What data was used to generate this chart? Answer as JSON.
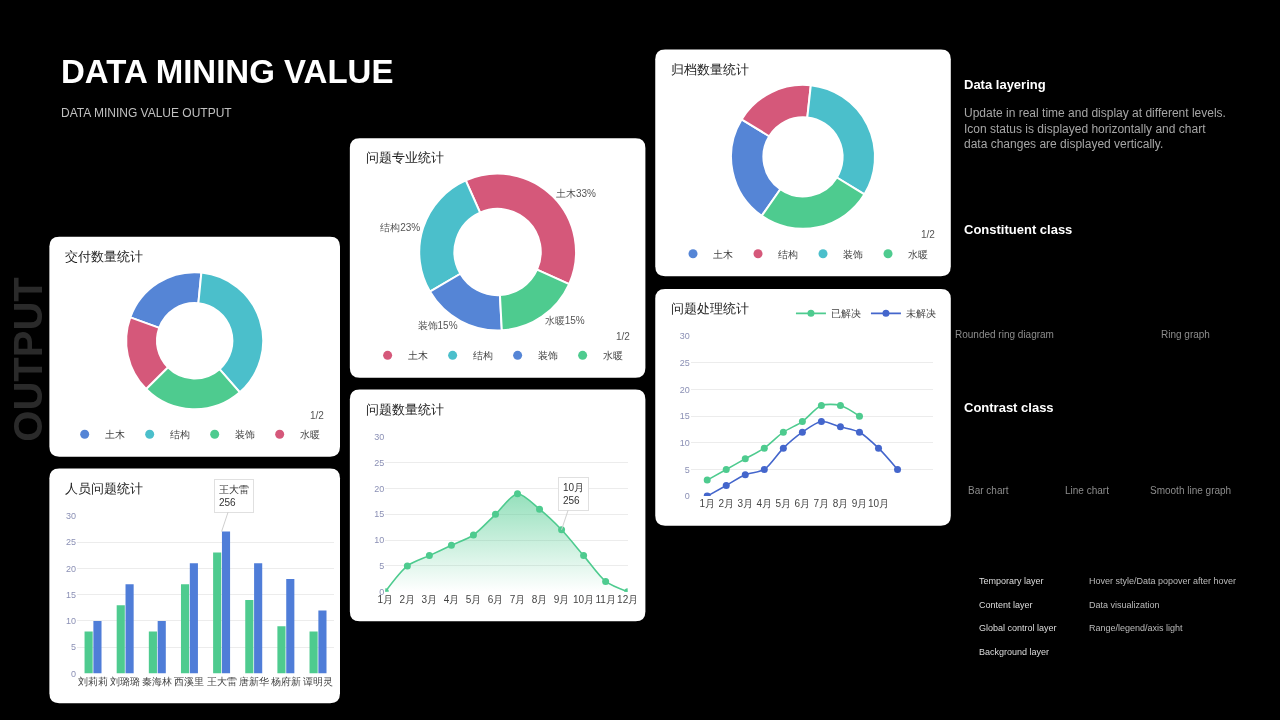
{
  "chart_data": [
    {
      "type": "other",
      "title": "DATA MINING VALUE",
      "subtitle": "DATA MINING VALUE OUTPUT",
      "annotations": [
        "OUTPUT",
        "Data layering",
        "Update in real time and display at different levels.\nIcon status is displayed horizontally and chart\ndata changes are displayed vertically.",
        "Constituent class",
        "Rounded ring diagram",
        "Ring graph",
        "Contrast class",
        "Bar chart",
        "Line chart",
        "Smooth line graph",
        "Temporary layer",
        "Content layer",
        "Global control layer",
        "Background layer",
        "Hover style/Data popover after hover",
        "Data visualization",
        "Range/legend/axis light"
      ]
    },
    {
      "type": "donut",
      "title": "交付数量统计",
      "categories": [
        "土木",
        "结构",
        "装饰",
        "水暖"
      ],
      "values": [
        21,
        37,
        24,
        18
      ],
      "colors": [
        "#5585d6",
        "#4bbfcb",
        "#4ecb8f",
        "#d5587a"
      ],
      "legend": "bottom",
      "annotations": [
        "1/2"
      ]
    },
    {
      "type": "donut",
      "title": "问题专业统计",
      "categories": [
        "土木",
        "结构",
        "装饰",
        "水暖"
      ],
      "values": [
        33,
        23,
        15,
        15
      ],
      "colors": [
        "#d5587a",
        "#4bbfcb",
        "#5585d6",
        "#4ecb8f"
      ],
      "value_labels": [
        "土木33%",
        "结构23%",
        "装饰15%",
        "水暖15%"
      ],
      "legend": "bottom",
      "annotations": [
        "1/2"
      ]
    },
    {
      "type": "donut",
      "title": "归档数量统计",
      "categories": [
        "土木",
        "结构",
        "装饰",
        "水暖"
      ],
      "values": [
        24,
        18,
        32,
        26
      ],
      "colors": [
        "#5585d6",
        "#d5587a",
        "#4bbfcb",
        "#4ecb8f"
      ],
      "legend": "bottom",
      "annotations": [
        "1/2"
      ]
    },
    {
      "type": "bar",
      "title": "人员问题统计",
      "categories": [
        "刘莉莉",
        "刘璐璐",
        "秦海林",
        "西溪里",
        "王大雷",
        "唐新华",
        "杨府新",
        "谭明灵"
      ],
      "series": [
        {
          "color": "#4ecb8f",
          "values": [
            8,
            13,
            8,
            17,
            23,
            14,
            9,
            8
          ]
        },
        {
          "color": "#4f7dd8",
          "values": [
            10,
            17,
            10,
            21,
            27,
            21,
            18,
            12
          ]
        }
      ],
      "ylim": [
        0,
        30
      ],
      "yticks": [
        0,
        5,
        10,
        15,
        20,
        25,
        30
      ],
      "grid": "y",
      "annotations": [
        {
          "text": "王大雷\n256",
          "x": "王大雷",
          "y": 27
        }
      ]
    },
    {
      "type": "area",
      "title": "问题数量统计",
      "categories": [
        "1月",
        "2月",
        "3月",
        "4月",
        "5月",
        "6月",
        "7月",
        "8月",
        "9月",
        "10月",
        "11月",
        "12月"
      ],
      "series": [
        {
          "color": "#4ecb8f",
          "values": [
            0,
            5,
            7,
            9,
            11,
            15,
            19,
            16,
            12,
            7,
            2,
            0
          ]
        }
      ],
      "ylim": [
        0,
        30
      ],
      "yticks": [
        0,
        5,
        10,
        15,
        20,
        25,
        30
      ],
      "grid": "y",
      "marker": "circle",
      "annotations": [
        {
          "text": "10月\n256",
          "x": "9月",
          "y": 12
        }
      ]
    },
    {
      "type": "line",
      "title": "问题处理统计",
      "categories": [
        "1月",
        "2月",
        "3月",
        "4月",
        "5月",
        "6月",
        "7月",
        "8月",
        "9月",
        "10月",
        null,
        null
      ],
      "series": [
        {
          "name": "已解决",
          "color": "#4ecb8f",
          "values": [
            3,
            5,
            7,
            9,
            12,
            14,
            17,
            17,
            15,
            null,
            null,
            null
          ]
        },
        {
          "name": "未解决",
          "color": "#4466cc",
          "values": [
            0,
            2,
            4,
            5,
            9,
            12,
            14,
            13,
            12,
            9,
            5,
            null
          ]
        }
      ],
      "ylim": [
        0,
        30
      ],
      "yticks": [
        0,
        5,
        10,
        15,
        20,
        25,
        30
      ],
      "grid": "y",
      "marker": "circle",
      "legend": "top right"
    }
  ]
}
